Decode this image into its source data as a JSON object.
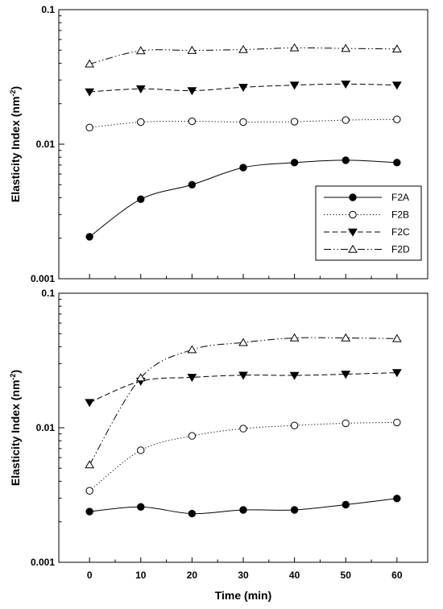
{
  "chart_data": [
    {
      "type": "line",
      "x": [
        0,
        10,
        20,
        30,
        40,
        50,
        60
      ],
      "xlim": [
        -6,
        66
      ],
      "ylim": [
        0.001,
        0.1
      ],
      "yscale": "log",
      "xticks": [
        "0",
        "10",
        "20",
        "30",
        "40",
        "50",
        "60"
      ],
      "yticks": [
        {
          "value": 0.001,
          "label": "0.001"
        },
        {
          "value": 0.01,
          "label": "0.01"
        },
        {
          "value": 0.1,
          "label": "0.1"
        }
      ],
      "ylabel_main": "Elasticity Index (nm",
      "ylabel_sup": "-2",
      "ylabel_end": ")",
      "xlabel": "",
      "grid": false,
      "legend": "center-right",
      "series": [
        {
          "name": "F2A",
          "marker": "filled-circle",
          "line": "solid",
          "values": [
            0.00205,
            0.0039,
            0.005,
            0.0067,
            0.0073,
            0.0076,
            0.0073
          ]
        },
        {
          "name": "F2B",
          "marker": "open-circle",
          "line": "dotted",
          "values": [
            0.0133,
            0.0146,
            0.0148,
            0.0146,
            0.0147,
            0.0151,
            0.0153
          ]
        },
        {
          "name": "F2C",
          "marker": "filled-triangle-down",
          "line": "dashed",
          "values": [
            0.0245,
            0.0258,
            0.025,
            0.0265,
            0.0275,
            0.028,
            0.0275
          ]
        },
        {
          "name": "F2D",
          "marker": "open-triangle-up",
          "line": "dash-dot-dot",
          "values": [
            0.0395,
            0.0495,
            0.0498,
            0.0505,
            0.052,
            0.0515,
            0.051
          ]
        }
      ]
    },
    {
      "type": "line",
      "x": [
        0,
        10,
        20,
        30,
        40,
        50,
        60
      ],
      "xlim": [
        -6,
        66
      ],
      "ylim": [
        0.001,
        0.1
      ],
      "yscale": "log",
      "xticks": [
        "0",
        "10",
        "20",
        "30",
        "40",
        "50",
        "60"
      ],
      "yticks": [
        {
          "value": 0.001,
          "label": "0.001"
        },
        {
          "value": 0.01,
          "label": "0.01"
        },
        {
          "value": 0.1,
          "label": "0.1"
        }
      ],
      "ylabel_main": "Elasticity Index (nm",
      "ylabel_sup": "-2",
      "ylabel_end": ")",
      "xlabel": "Time (min)",
      "grid": false,
      "legend": "none",
      "series": [
        {
          "marker": "filled-circle",
          "line": "solid",
          "values": [
            0.00238,
            0.00258,
            0.0023,
            0.00245,
            0.00245,
            0.00268,
            0.00298
          ]
        },
        {
          "marker": "open-circle",
          "line": "dotted",
          "values": [
            0.0034,
            0.0068,
            0.0087,
            0.00985,
            0.0104,
            0.0108,
            0.01095
          ]
        },
        {
          "marker": "filled-triangle-down",
          "line": "dashed",
          "values": [
            0.0154,
            0.0222,
            0.0237,
            0.0246,
            0.0245,
            0.025,
            0.0257
          ]
        },
        {
          "marker": "open-triangle-up",
          "line": "dash-dot-dot",
          "values": [
            0.0053,
            0.0235,
            0.038,
            0.043,
            0.0465,
            0.0465,
            0.046
          ]
        }
      ]
    }
  ]
}
